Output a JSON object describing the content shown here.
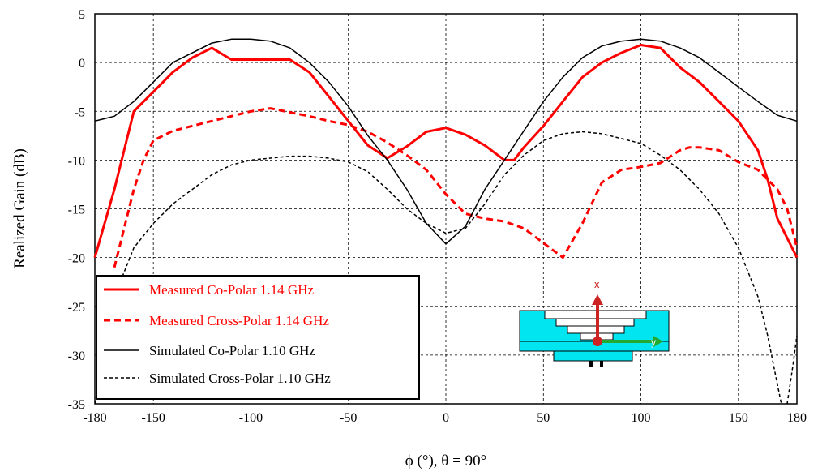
{
  "chart_data": {
    "type": "line",
    "title": "",
    "xlabel": "ϕ (°), θ = 90°",
    "ylabel": "Realized Gain (dB)",
    "xlim": [
      -180,
      180
    ],
    "ylim": [
      -35,
      5
    ],
    "grid": true,
    "legend_position": "bottom-left",
    "x_ticks": [
      -180,
      -150,
      -100,
      -50,
      0,
      50,
      100,
      150,
      180
    ],
    "y_ticks": [
      5,
      0,
      -5,
      -10,
      -15,
      -20,
      -25,
      -30,
      -35
    ],
    "series": [
      {
        "name": "Measured Co-Polar 1.14 GHz",
        "color": "#ff0000",
        "dash": "solid",
        "width": 3,
        "points": [
          [
            -180,
            -20
          ],
          [
            -175,
            -16.5
          ],
          [
            -170,
            -13
          ],
          [
            -165,
            -9
          ],
          [
            -160,
            -5
          ],
          [
            -150,
            -3
          ],
          [
            -140,
            -1
          ],
          [
            -130,
            0.5
          ],
          [
            -120,
            1.5
          ],
          [
            -110,
            0.3
          ],
          [
            -100,
            0.3
          ],
          [
            -90,
            0.3
          ],
          [
            -80,
            0.3
          ],
          [
            -70,
            -1
          ],
          [
            -60,
            -3.5
          ],
          [
            -50,
            -6
          ],
          [
            -40,
            -8.5
          ],
          [
            -30,
            -9.8
          ],
          [
            -20,
            -8.6
          ],
          [
            -10,
            -7.1
          ],
          [
            0,
            -6.7
          ],
          [
            10,
            -7.4
          ],
          [
            20,
            -8.5
          ],
          [
            30,
            -10
          ],
          [
            35,
            -10
          ],
          [
            40,
            -8.7
          ],
          [
            50,
            -6.5
          ],
          [
            60,
            -4
          ],
          [
            70,
            -1.5
          ],
          [
            80,
            0
          ],
          [
            90,
            1
          ],
          [
            100,
            1.8
          ],
          [
            110,
            1.5
          ],
          [
            120,
            -0.5
          ],
          [
            130,
            -2
          ],
          [
            140,
            -4
          ],
          [
            150,
            -6
          ],
          [
            160,
            -9
          ],
          [
            165,
            -12
          ],
          [
            170,
            -16
          ],
          [
            175,
            -18
          ],
          [
            180,
            -20
          ]
        ]
      },
      {
        "name": "Measured Cross-Polar 1.14 GHz",
        "color": "#ff0000",
        "dash": "dashed",
        "width": 3,
        "points": [
          [
            -170,
            -21
          ],
          [
            -165,
            -17
          ],
          [
            -160,
            -13
          ],
          [
            -155,
            -10
          ],
          [
            -150,
            -8
          ],
          [
            -140,
            -7
          ],
          [
            -130,
            -6.5
          ],
          [
            -120,
            -6
          ],
          [
            -110,
            -5.5
          ],
          [
            -100,
            -5
          ],
          [
            -90,
            -4.7
          ],
          [
            -80,
            -5.1
          ],
          [
            -70,
            -5.5
          ],
          [
            -60,
            -6
          ],
          [
            -50,
            -6.4
          ],
          [
            -40,
            -7.1
          ],
          [
            -30,
            -8.2
          ],
          [
            -20,
            -9.5
          ],
          [
            -10,
            -11
          ],
          [
            0,
            -13.5
          ],
          [
            10,
            -15.5
          ],
          [
            20,
            -16
          ],
          [
            30,
            -16.3
          ],
          [
            40,
            -17
          ],
          [
            50,
            -18.5
          ],
          [
            60,
            -20
          ],
          [
            70,
            -16.5
          ],
          [
            80,
            -12.3
          ],
          [
            90,
            -11
          ],
          [
            100,
            -10.7
          ],
          [
            110,
            -10.3
          ],
          [
            120,
            -9
          ],
          [
            125,
            -8.7
          ],
          [
            130,
            -8.7
          ],
          [
            140,
            -9
          ],
          [
            150,
            -10.2
          ],
          [
            160,
            -11
          ],
          [
            170,
            -13
          ],
          [
            175,
            -15
          ],
          [
            180,
            -19
          ]
        ]
      },
      {
        "name": "Simulated Co-Polar 1.10 GHz",
        "color": "#000000",
        "dash": "solid",
        "width": 1.5,
        "points": [
          [
            -180,
            -6
          ],
          [
            -170,
            -5.5
          ],
          [
            -160,
            -4
          ],
          [
            -150,
            -2
          ],
          [
            -140,
            0
          ],
          [
            -130,
            1
          ],
          [
            -120,
            2
          ],
          [
            -110,
            2.4
          ],
          [
            -100,
            2.4
          ],
          [
            -90,
            2.2
          ],
          [
            -80,
            1.5
          ],
          [
            -70,
            0
          ],
          [
            -60,
            -2
          ],
          [
            -50,
            -4.5
          ],
          [
            -40,
            -7.5
          ],
          [
            -30,
            -10
          ],
          [
            -20,
            -13
          ],
          [
            -10,
            -16.5
          ],
          [
            0,
            -18.6
          ],
          [
            10,
            -16.8
          ],
          [
            20,
            -13
          ],
          [
            30,
            -10
          ],
          [
            40,
            -7
          ],
          [
            50,
            -4
          ],
          [
            60,
            -1.5
          ],
          [
            70,
            0.5
          ],
          [
            80,
            1.7
          ],
          [
            90,
            2.2
          ],
          [
            100,
            2.4
          ],
          [
            110,
            2.2
          ],
          [
            120,
            1.5
          ],
          [
            130,
            0.5
          ],
          [
            140,
            -1
          ],
          [
            150,
            -2.5
          ],
          [
            160,
            -4
          ],
          [
            170,
            -5.4
          ],
          [
            180,
            -6
          ]
        ]
      },
      {
        "name": "Simulated Cross-Polar 1.10 GHz",
        "color": "#000000",
        "dash": "dashed",
        "width": 1.5,
        "points": [
          [
            -180,
            -35
          ],
          [
            -175,
            -30
          ],
          [
            -170,
            -24
          ],
          [
            -160,
            -19
          ],
          [
            -150,
            -16.5
          ],
          [
            -140,
            -14.5
          ],
          [
            -130,
            -13
          ],
          [
            -120,
            -11.5
          ],
          [
            -110,
            -10.5
          ],
          [
            -100,
            -10
          ],
          [
            -90,
            -9.8
          ],
          [
            -80,
            -9.6
          ],
          [
            -70,
            -9.6
          ],
          [
            -60,
            -9.8
          ],
          [
            -50,
            -10.2
          ],
          [
            -40,
            -11.2
          ],
          [
            -30,
            -13
          ],
          [
            -20,
            -15
          ],
          [
            -10,
            -16.5
          ],
          [
            0,
            -17.5
          ],
          [
            10,
            -17
          ],
          [
            20,
            -14.5
          ],
          [
            30,
            -11.5
          ],
          [
            40,
            -9.5
          ],
          [
            50,
            -8
          ],
          [
            60,
            -7.3
          ],
          [
            70,
            -7.1
          ],
          [
            80,
            -7.3
          ],
          [
            90,
            -7.8
          ],
          [
            100,
            -8.3
          ],
          [
            110,
            -9.5
          ],
          [
            120,
            -11
          ],
          [
            130,
            -13
          ],
          [
            140,
            -15.5
          ],
          [
            150,
            -19
          ],
          [
            160,
            -24
          ],
          [
            165,
            -28
          ],
          [
            170,
            -33
          ],
          [
            172,
            -35
          ]
        ]
      },
      {
        "name": "Simulated Cross-Polar 1.10 GHz (segment)",
        "legend": false,
        "color": "#000000",
        "dash": "dashed",
        "width": 1.5,
        "points": [
          [
            175,
            -35
          ],
          [
            178,
            -31
          ],
          [
            180,
            -28
          ]
        ]
      }
    ]
  },
  "inset": {
    "x_axis_label": "x",
    "y_axis_label": "y",
    "colors": {
      "body": "#00e5f0",
      "outline": "#000000",
      "cap": "#ffffff",
      "x_arrow": "#cc2222",
      "y_arrow": "#22aa33",
      "origin": "#cc2222"
    }
  }
}
